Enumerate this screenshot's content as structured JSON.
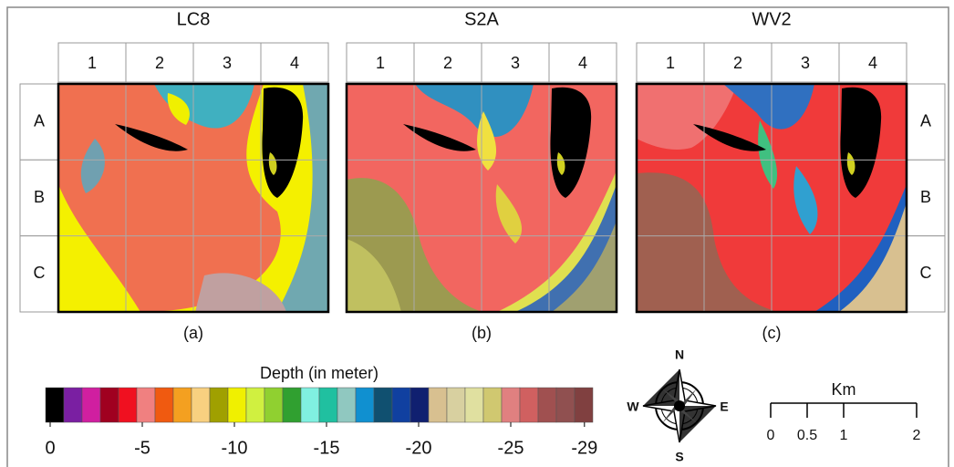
{
  "panels": [
    {
      "title": "LC8",
      "caption": "(a)",
      "columns": [
        "1",
        "2",
        "3",
        "4"
      ],
      "rows": [
        "A",
        "B",
        "C"
      ]
    },
    {
      "title": "S2A",
      "caption": "(b)",
      "columns": [
        "1",
        "2",
        "3",
        "4"
      ]
    },
    {
      "title": "WV2",
      "caption": "(c)",
      "columns": [
        "1",
        "2",
        "3",
        "4"
      ],
      "rows": [
        "A",
        "B",
        "C"
      ]
    }
  ],
  "legend": {
    "title": "Depth (in meter)",
    "colors": [
      "#000000",
      "#7a1fa2",
      "#d01fa0",
      "#a00020",
      "#f01020",
      "#f08080",
      "#f05a10",
      "#f4a020",
      "#f8d080",
      "#a0a000",
      "#f0f000",
      "#d0f040",
      "#90d030",
      "#30a030",
      "#80f0e0",
      "#20c0a0",
      "#90c8c0",
      "#1090d0",
      "#105070",
      "#1040a0",
      "#102070",
      "#d8c090",
      "#d8d0a0",
      "#e0e0a0",
      "#d0c870",
      "#e08080",
      "#d06060",
      "#a05050",
      "#905050",
      "#804040"
    ],
    "ticks": [
      0,
      -5,
      -10,
      -15,
      -20,
      -25,
      -29
    ]
  },
  "compass": {
    "north": "N",
    "south": "S",
    "east": "E",
    "west": "W"
  },
  "scale_bar": {
    "unit": "Km",
    "ticks": [
      0,
      0.5,
      1,
      2
    ]
  }
}
